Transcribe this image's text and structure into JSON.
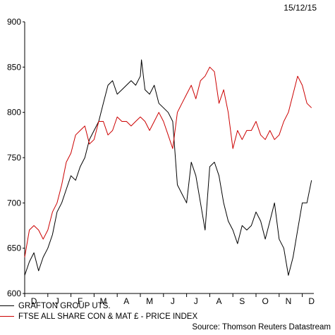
{
  "date_label": "15/12/15",
  "source_text": "Source: Thomson Reuters Datastream",
  "colors": {
    "series1": "#000000",
    "series2": "#cc0000"
  },
  "chart_data": {
    "type": "line",
    "title": "",
    "xlabel": "",
    "ylabel": "",
    "ylim": [
      600,
      900
    ],
    "yticks": [
      600,
      650,
      700,
      750,
      800,
      850,
      900
    ],
    "xlim": [
      0,
      12.5
    ],
    "month_labels": [
      "D",
      "J",
      "F",
      "M",
      "A",
      "M",
      "J",
      "J",
      "A",
      "S",
      "O",
      "N",
      "D"
    ],
    "legend_position": "bottom-left",
    "grid": false,
    "series": [
      {
        "name": "GRAFTON GROUP UTS.",
        "color": "#000000",
        "x": [
          0.0,
          0.2,
          0.4,
          0.6,
          0.8,
          1.0,
          1.2,
          1.4,
          1.6,
          1.8,
          2.0,
          2.2,
          2.4,
          2.6,
          2.8,
          3.0,
          3.2,
          3.4,
          3.6,
          3.8,
          4.0,
          4.2,
          4.4,
          4.6,
          4.8,
          5.0,
          5.05,
          5.2,
          5.4,
          5.6,
          5.8,
          6.0,
          6.2,
          6.4,
          6.6,
          6.8,
          7.0,
          7.2,
          7.4,
          7.6,
          7.8,
          8.0,
          8.2,
          8.4,
          8.6,
          8.8,
          9.0,
          9.2,
          9.4,
          9.6,
          9.8,
          10.0,
          10.2,
          10.4,
          10.6,
          10.8,
          11.0,
          11.2,
          11.4,
          11.6,
          11.8,
          12.0,
          12.2,
          12.4
        ],
        "y": [
          620,
          635,
          645,
          625,
          640,
          650,
          665,
          690,
          700,
          715,
          730,
          725,
          740,
          750,
          770,
          780,
          790,
          810,
          830,
          835,
          820,
          825,
          830,
          835,
          830,
          840,
          858,
          825,
          820,
          830,
          810,
          805,
          800,
          790,
          720,
          710,
          700,
          745,
          730,
          700,
          670,
          740,
          745,
          730,
          700,
          680,
          670,
          655,
          675,
          670,
          675,
          690,
          680,
          660,
          680,
          700,
          660,
          650,
          620,
          640,
          670,
          700,
          700,
          725
        ]
      },
      {
        "name": "FTSE ALL SHARE CON & MAT £ - PRICE INDEX",
        "color": "#cc0000",
        "x": [
          0.0,
          0.2,
          0.4,
          0.6,
          0.8,
          1.0,
          1.2,
          1.4,
          1.6,
          1.8,
          2.0,
          2.2,
          2.4,
          2.6,
          2.8,
          3.0,
          3.2,
          3.4,
          3.6,
          3.8,
          4.0,
          4.2,
          4.4,
          4.6,
          4.8,
          5.0,
          5.2,
          5.4,
          5.6,
          5.8,
          6.0,
          6.2,
          6.4,
          6.6,
          6.8,
          7.0,
          7.2,
          7.4,
          7.6,
          7.8,
          8.0,
          8.2,
          8.4,
          8.6,
          8.8,
          9.0,
          9.2,
          9.4,
          9.6,
          9.8,
          10.0,
          10.2,
          10.4,
          10.6,
          10.8,
          11.0,
          11.2,
          11.4,
          11.6,
          11.8,
          12.0,
          12.2,
          12.4
        ],
        "y": [
          640,
          670,
          675,
          670,
          660,
          670,
          690,
          700,
          720,
          745,
          755,
          775,
          780,
          785,
          765,
          770,
          790,
          790,
          775,
          780,
          795,
          790,
          790,
          785,
          790,
          795,
          790,
          780,
          790,
          800,
          790,
          775,
          760,
          800,
          810,
          820,
          830,
          815,
          835,
          840,
          850,
          845,
          810,
          825,
          800,
          760,
          780,
          770,
          780,
          780,
          790,
          775,
          770,
          780,
          770,
          775,
          790,
          800,
          820,
          840,
          830,
          810,
          805
        ]
      }
    ]
  }
}
